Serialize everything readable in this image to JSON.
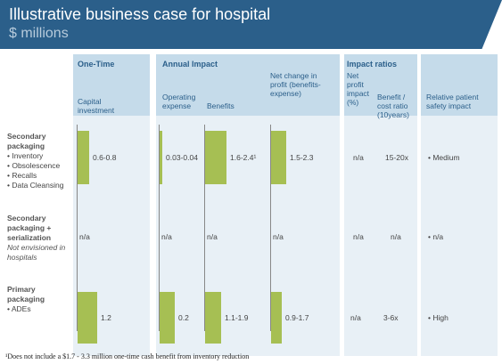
{
  "title": "Illustrative business case for hospital",
  "subtitle": "$ millions",
  "groups": {
    "one_time": "One-Time",
    "annual": "Annual Impact",
    "ratios": "Impact ratios"
  },
  "columns": {
    "capital": "Capital investment",
    "opex": "Operating expense",
    "benefits": "Benefits",
    "net_change": "Net change in profit (benefits-expense)",
    "net_profit_impact": "Net profit impact (%)",
    "benefit_cost": "Benefit / cost ratio (10years)",
    "safety": "Relative patient safety impact"
  },
  "rows": [
    {
      "label": "Secondary packaging",
      "bullets": [
        "Inventory",
        "Obsolescence",
        "Recalls",
        "Data Cleansing"
      ],
      "note": "",
      "capital": "0.6-0.8",
      "opex": "0.03-0.04",
      "benefits": "1.6-2.4¹",
      "net": "1.5-2.3",
      "npi": "n/a",
      "bcr": "15-20x",
      "safety": "• Medium"
    },
    {
      "label": "Secondary packaging + serialization",
      "bullets": [],
      "note": "Not envisioned in hospitals",
      "capital": "n/a",
      "opex": "n/a",
      "benefits": "n/a",
      "net": "n/a",
      "npi": "n/a",
      "bcr": "n/a",
      "safety": "• n/a"
    },
    {
      "label": "Primary packaging",
      "bullets": [
        "ADEs"
      ],
      "note": "",
      "capital": "1.2",
      "opex": "0.2",
      "benefits": "1.1-1.9",
      "net": "0.9-1.7",
      "npi": "n/a",
      "bcr": "3-6x",
      "safety": "• High"
    }
  ],
  "chart_data": {
    "type": "bar",
    "categories": [
      "Secondary packaging",
      "Secondary packaging + serialization",
      "Primary packaging"
    ],
    "series": [
      {
        "name": "Capital investment",
        "values": [
          0.7,
          null,
          1.2
        ],
        "labels": [
          "0.6-0.8",
          "n/a",
          "1.2"
        ]
      },
      {
        "name": "Operating expense",
        "values": [
          0.035,
          null,
          0.2
        ],
        "labels": [
          "0.03-0.04",
          "n/a",
          "0.2"
        ]
      },
      {
        "name": "Benefits",
        "values": [
          2.0,
          null,
          1.5
        ],
        "labels": [
          "1.6-2.4¹",
          "n/a",
          "1.1-1.9"
        ]
      },
      {
        "name": "Net change in profit (benefits-expense)",
        "values": [
          1.9,
          null,
          1.3
        ],
        "labels": [
          "1.5-2.3",
          "n/a",
          "0.9-1.7"
        ]
      }
    ],
    "bar_color": "#a6bf53"
  },
  "footnote": "¹Does not include a $1.7 - 3.3 million one-time cash benefit from inventory reduction"
}
